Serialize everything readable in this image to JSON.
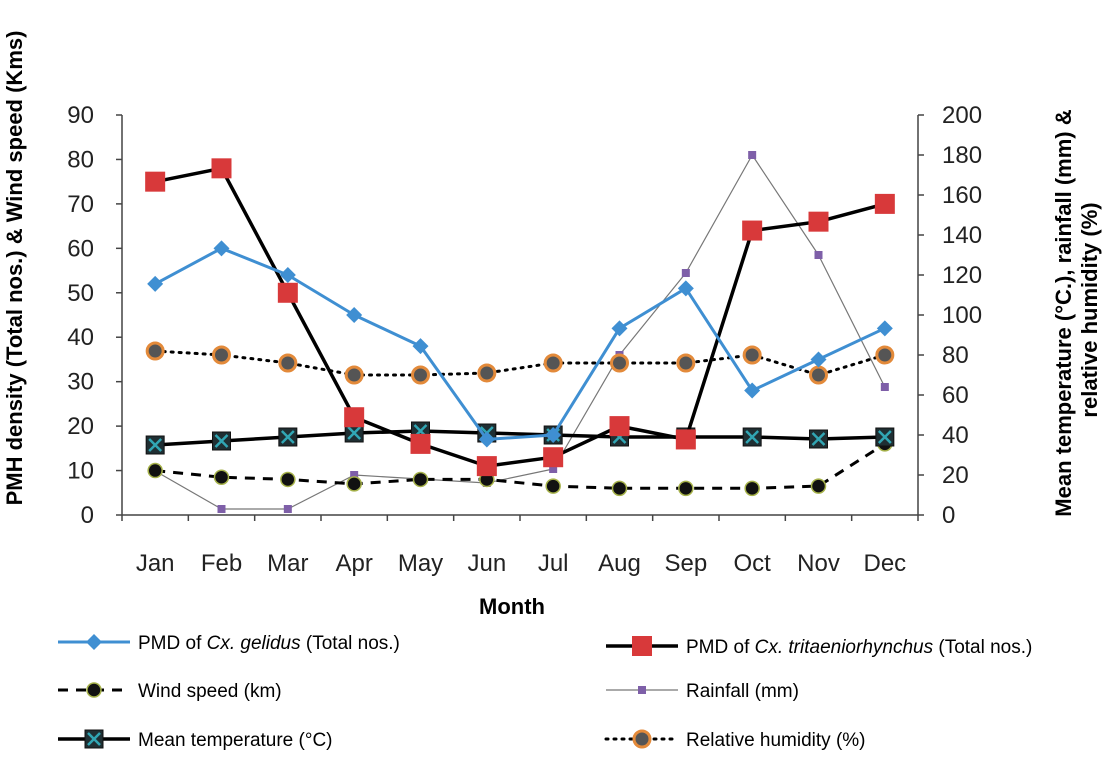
{
  "chart_data": {
    "type": "line",
    "categories": [
      "Jan",
      "Feb",
      "Mar",
      "Apr",
      "May",
      "Jun",
      "Jul",
      "Aug",
      "Sep",
      "Oct",
      "Nov",
      "Dec"
    ],
    "xlabel": "Month",
    "ylabel_left": "PMH density (Total nos.) & Wind speed (Kms)",
    "ylabel_right": "Mean temperature (°C.), rainfall (mm) & relative humidity (%)",
    "ylim_left": [
      0,
      90
    ],
    "ylim_right": [
      0,
      200
    ],
    "yticks_left": [
      "0",
      "10",
      "20",
      "30",
      "40",
      "50",
      "60",
      "70",
      "80",
      "90"
    ],
    "yticks_right": [
      "0",
      "20",
      "40",
      "60",
      "80",
      "100",
      "120",
      "140",
      "160",
      "180",
      "200"
    ],
    "grid": false,
    "legend_position": "bottom",
    "series": [
      {
        "key": "gelidus",
        "axis": "left",
        "color": "#3f8fd2",
        "legend_prefix": "PMD of ",
        "legend_italic": "Cx. gelidus",
        "legend_suffix": " (Total nos.)",
        "values": [
          52,
          60,
          54,
          45,
          38,
          17,
          18,
          42,
          51,
          28,
          35,
          42
        ]
      },
      {
        "key": "tritaeniorhynchus",
        "axis": "left",
        "color": "#000000",
        "marker_color": "#d8393a",
        "legend_prefix": "PMD of ",
        "legend_italic": "Cx. tritaeniorhynchus",
        "legend_suffix": " (Total nos.)",
        "values": [
          75,
          78,
          50,
          22,
          16,
          11,
          13,
          20,
          17,
          64,
          66,
          70
        ]
      },
      {
        "key": "wind",
        "axis": "left",
        "color": "#000000",
        "marker_color": "#a6b24a",
        "legend_prefix": "Wind speed (km)",
        "legend_italic": "",
        "legend_suffix": "",
        "values": [
          10,
          8.5,
          8,
          7,
          8,
          8,
          6.5,
          6,
          6,
          6,
          6.5,
          16
        ]
      },
      {
        "key": "rainfall",
        "axis": "right",
        "color": "#777777",
        "marker_color": "#7e5fa8",
        "legend_prefix": "Rainfall (mm)",
        "legend_italic": "",
        "legend_suffix": "",
        "values": [
          22,
          3,
          3,
          20,
          18,
          16,
          23,
          80,
          121,
          180,
          130,
          64
        ]
      },
      {
        "key": "temperature",
        "axis": "right",
        "color": "#000000",
        "marker_color": "#31a6b4",
        "legend_prefix": "Mean temperature (°C)",
        "legend_italic": "",
        "legend_suffix": "",
        "values": [
          35,
          37,
          39,
          41,
          42,
          41,
          40,
          39,
          39,
          39,
          38,
          39
        ]
      },
      {
        "key": "humidity",
        "axis": "right",
        "color": "#000000",
        "marker_color": "#e38a3a",
        "legend_prefix": "Relative humidity (%)",
        "legend_italic": "",
        "legend_suffix": "",
        "values": [
          82,
          80,
          76,
          70,
          70,
          71,
          76,
          76,
          76,
          80,
          70,
          80
        ]
      }
    ]
  }
}
